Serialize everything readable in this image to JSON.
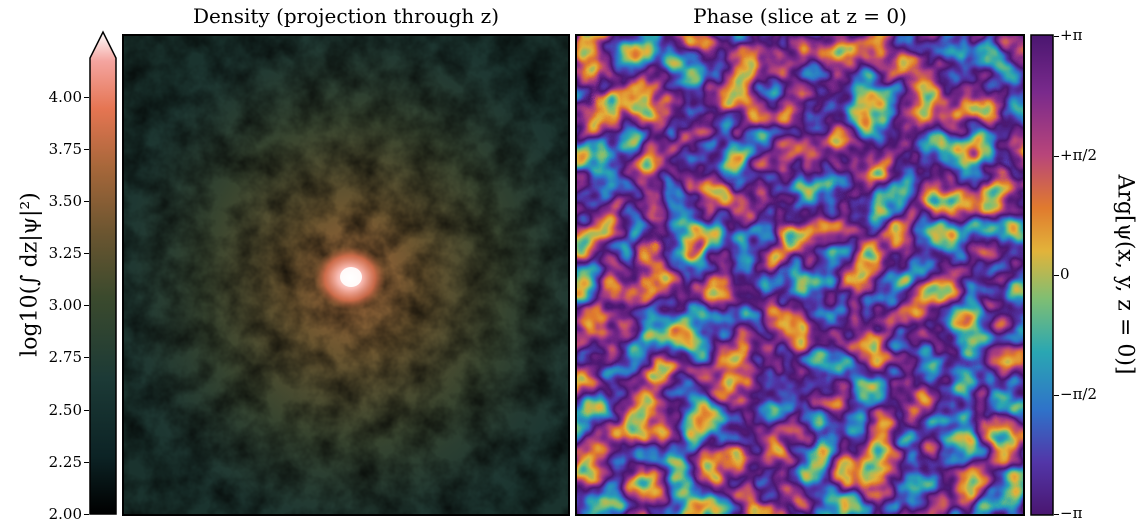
{
  "chart_data": [
    {
      "type": "heatmap",
      "title": "Density (projection through z)",
      "colorbar": {
        "label": "log10(∫ dz|ψ|²)",
        "range": [
          2.0,
          4.3
        ],
        "extend": "max",
        "ticks": [
          "2.00",
          "2.25",
          "2.50",
          "2.75",
          "3.00",
          "3.25",
          "3.50",
          "3.75",
          "4.00"
        ],
        "tick_values": [
          2.0,
          2.25,
          2.5,
          2.75,
          3.0,
          3.25,
          3.5,
          3.75,
          4.0
        ],
        "colors": [
          "#000000",
          "#0c2325",
          "#1c3a36",
          "#3b4a2d",
          "#6a5530",
          "#a7673a",
          "#e57552",
          "#f4a5a0",
          "#ffffff"
        ],
        "position": "left"
      },
      "peak": {
        "x": 0.5,
        "y": 0.64,
        "value": 4.3
      }
    },
    {
      "type": "heatmap",
      "title": "Phase (slice at z = 0)",
      "colorbar": {
        "label": "Arg[ψ(x, y, z = 0)]",
        "range": [
          -3.1416,
          3.1416
        ],
        "ticks": [
          "+π",
          "+π/2",
          "0",
          "−π/2",
          "−π"
        ],
        "tick_values": [
          3.1416,
          1.5708,
          0,
          -1.5708,
          -3.1416
        ],
        "colors": [
          "#4a1670",
          "#7a2a8c",
          "#b8457a",
          "#e07a2e",
          "#e2b33a",
          "#7fbe73",
          "#2aa7b2",
          "#2f73c9",
          "#5236a8",
          "#4a1670"
        ],
        "position": "right"
      }
    }
  ]
}
